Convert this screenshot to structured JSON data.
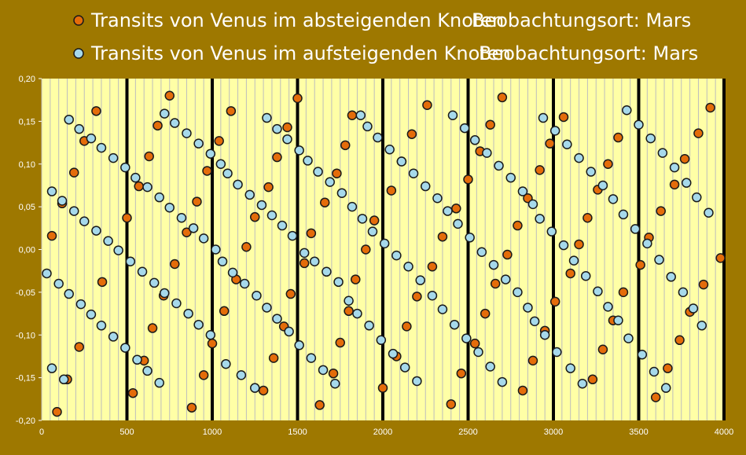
{
  "colors": {
    "background": "#9E7800",
    "plot_area": "#FFFFA6",
    "grid": "#BDBDBD",
    "desc_marker": "#E46C0A",
    "asc_marker": "#A6D9EB",
    "marker_stroke": "#1A1A1A",
    "text": "#FFFFFF"
  },
  "chart_data": {
    "type": "scatter",
    "xlim": [
      0,
      4000
    ],
    "ylim": [
      -0.2,
      0.2
    ],
    "x_ticks": [
      0,
      500,
      1000,
      1500,
      2000,
      2500,
      3000,
      3500,
      4000
    ],
    "y_ticks": [
      -0.2,
      -0.15,
      -0.1,
      -0.05,
      0,
      0.05,
      0.1,
      0.15,
      0.2
    ],
    "x_tick_labels": [
      "0",
      "500",
      "1000",
      "1500",
      "2000",
      "2500",
      "3000",
      "3500",
      "4000"
    ],
    "y_tick_labels": [
      "-0,20",
      "-0,15",
      "-0,10",
      "-0,05",
      "0,00",
      "0,05",
      "0,10",
      "0,15",
      "0,20"
    ],
    "vertical_grid_step": 50,
    "bold_vertical_lines": [
      500,
      1000,
      1500,
      2000,
      2500,
      3000,
      3500,
      4000
    ],
    "legend_position": "top",
    "series": [
      {
        "name": "Transits von Venus im absteigenden Knoten",
        "location": "Beobachtungsort: Mars",
        "marker": "orange-circle",
        "points": [
          [
            60,
            0.016
          ],
          [
            90,
            -0.19
          ],
          [
            120,
            0.054
          ],
          [
            150,
            -0.152
          ],
          [
            190,
            0.09
          ],
          [
            220,
            -0.114
          ],
          [
            250,
            0.127
          ],
          [
            320,
            0.162
          ],
          [
            355,
            -0.038
          ],
          [
            500,
            0.037
          ],
          [
            535,
            -0.168
          ],
          [
            570,
            0.074
          ],
          [
            600,
            -0.13
          ],
          [
            630,
            0.109
          ],
          [
            650,
            -0.092
          ],
          [
            680,
            0.145
          ],
          [
            715,
            -0.054
          ],
          [
            750,
            0.18
          ],
          [
            780,
            -0.017
          ],
          [
            850,
            0.02
          ],
          [
            880,
            -0.185
          ],
          [
            910,
            0.056
          ],
          [
            950,
            -0.147
          ],
          [
            970,
            0.092
          ],
          [
            1000,
            -0.11
          ],
          [
            1040,
            0.127
          ],
          [
            1070,
            -0.072
          ],
          [
            1110,
            0.162
          ],
          [
            1140,
            -0.035
          ],
          [
            1200,
            0.003
          ],
          [
            1250,
            0.038
          ],
          [
            1300,
            -0.165
          ],
          [
            1330,
            0.073
          ],
          [
            1360,
            -0.127
          ],
          [
            1380,
            0.108
          ],
          [
            1420,
            -0.09
          ],
          [
            1440,
            0.143
          ],
          [
            1460,
            -0.052
          ],
          [
            1500,
            0.177
          ],
          [
            1540,
            -0.016
          ],
          [
            1580,
            0.019
          ],
          [
            1630,
            -0.182
          ],
          [
            1660,
            0.055
          ],
          [
            1710,
            -0.145
          ],
          [
            1730,
            0.089
          ],
          [
            1750,
            -0.109
          ],
          [
            1780,
            0.122
          ],
          [
            1800,
            -0.072
          ],
          [
            1820,
            0.157
          ],
          [
            1840,
            -0.035
          ],
          [
            1900,
            0.0
          ],
          [
            1950,
            0.034
          ],
          [
            2000,
            -0.162
          ],
          [
            2050,
            0.069
          ],
          [
            2080,
            -0.125
          ],
          [
            2110,
            0.103
          ],
          [
            2140,
            -0.09
          ],
          [
            2170,
            0.135
          ],
          [
            2200,
            -0.055
          ],
          [
            2260,
            0.169
          ],
          [
            2290,
            -0.02
          ],
          [
            2350,
            0.015
          ],
          [
            2400,
            -0.181
          ],
          [
            2430,
            0.048
          ],
          [
            2460,
            -0.145
          ],
          [
            2500,
            0.082
          ],
          [
            2540,
            -0.11
          ],
          [
            2570,
            0.115
          ],
          [
            2600,
            -0.075
          ],
          [
            2630,
            0.146
          ],
          [
            2660,
            -0.04
          ],
          [
            2700,
            0.178
          ],
          [
            2730,
            -0.006
          ],
          [
            2790,
            0.028
          ],
          [
            2820,
            -0.165
          ],
          [
            2850,
            0.06
          ],
          [
            2880,
            -0.13
          ],
          [
            2920,
            0.093
          ],
          [
            2950,
            -0.095
          ],
          [
            2980,
            0.124
          ],
          [
            3010,
            -0.061
          ],
          [
            3060,
            0.155
          ],
          [
            3100,
            -0.028
          ],
          [
            3150,
            0.006
          ],
          [
            3200,
            0.037
          ],
          [
            3230,
            -0.152
          ],
          [
            3260,
            0.07
          ],
          [
            3290,
            -0.117
          ],
          [
            3320,
            0.1
          ],
          [
            3350,
            -0.083
          ],
          [
            3380,
            0.131
          ],
          [
            3410,
            -0.05
          ],
          [
            3510,
            -0.018
          ],
          [
            3560,
            0.014
          ],
          [
            3600,
            -0.173
          ],
          [
            3630,
            0.045
          ],
          [
            3670,
            -0.139
          ],
          [
            3710,
            0.076
          ],
          [
            3740,
            -0.106
          ],
          [
            3770,
            0.106
          ],
          [
            3800,
            -0.073
          ],
          [
            3850,
            0.136
          ],
          [
            3880,
            -0.041
          ],
          [
            3920,
            0.166
          ],
          [
            3980,
            -0.01
          ]
        ]
      },
      {
        "name": "Transits von Venus im aufsteigenden Knoten",
        "location": "Beobachtungsort: Mars",
        "marker": "lightblue-circle",
        "points": [
          [
            30,
            -0.028
          ],
          [
            60,
            0.068
          ],
          [
            60,
            -0.139
          ],
          [
            100,
            -0.04
          ],
          [
            120,
            0.057
          ],
          [
            130,
            -0.152
          ],
          [
            160,
            0.152
          ],
          [
            160,
            -0.052
          ],
          [
            190,
            0.045
          ],
          [
            220,
            0.141
          ],
          [
            230,
            -0.064
          ],
          [
            250,
            0.033
          ],
          [
            290,
            0.13
          ],
          [
            290,
            -0.076
          ],
          [
            320,
            0.022
          ],
          [
            350,
            0.119
          ],
          [
            350,
            -0.089
          ],
          [
            390,
            0.01
          ],
          [
            420,
            0.107
          ],
          [
            420,
            -0.102
          ],
          [
            450,
            -0.001
          ],
          [
            490,
            0.096
          ],
          [
            490,
            -0.115
          ],
          [
            520,
            -0.014
          ],
          [
            550,
            0.084
          ],
          [
            560,
            -0.129
          ],
          [
            590,
            -0.026
          ],
          [
            620,
            0.073
          ],
          [
            620,
            -0.142
          ],
          [
            660,
            -0.039
          ],
          [
            690,
            0.061
          ],
          [
            690,
            -0.156
          ],
          [
            720,
            0.159
          ],
          [
            720,
            -0.051
          ],
          [
            750,
            0.049
          ],
          [
            780,
            0.148
          ],
          [
            790,
            -0.063
          ],
          [
            820,
            0.037
          ],
          [
            850,
            0.136
          ],
          [
            860,
            -0.075
          ],
          [
            890,
            0.025
          ],
          [
            920,
            0.124
          ],
          [
            920,
            -0.088
          ],
          [
            950,
            0.013
          ],
          [
            990,
            0.112
          ],
          [
            990,
            -0.1
          ],
          [
            1020,
            0.0
          ],
          [
            1050,
            0.1
          ],
          [
            1060,
            -0.014
          ],
          [
            1080,
            -0.134
          ],
          [
            1090,
            0.089
          ],
          [
            1120,
            -0.027
          ],
          [
            1150,
            0.076
          ],
          [
            1170,
            -0.147
          ],
          [
            1190,
            -0.04
          ],
          [
            1220,
            0.064
          ],
          [
            1250,
            -0.162
          ],
          [
            1260,
            -0.054
          ],
          [
            1290,
            0.052
          ],
          [
            1320,
            0.154
          ],
          [
            1320,
            -0.068
          ],
          [
            1350,
            0.04
          ],
          [
            1380,
            0.141
          ],
          [
            1380,
            -0.081
          ],
          [
            1410,
            0.028
          ],
          [
            1440,
            0.129
          ],
          [
            1450,
            -0.096
          ],
          [
            1470,
            0.016
          ],
          [
            1510,
            0.116
          ],
          [
            1510,
            -0.112
          ],
          [
            1540,
            -0.004
          ],
          [
            1560,
            0.104
          ],
          [
            1580,
            -0.127
          ],
          [
            1600,
            -0.014
          ],
          [
            1620,
            0.091
          ],
          [
            1650,
            -0.141
          ],
          [
            1670,
            -0.026
          ],
          [
            1690,
            0.079
          ],
          [
            1720,
            -0.157
          ],
          [
            1740,
            -0.038
          ],
          [
            1760,
            0.066
          ],
          [
            1800,
            -0.06
          ],
          [
            1820,
            0.05
          ],
          [
            1850,
            -0.075
          ],
          [
            1870,
            0.157
          ],
          [
            1880,
            0.036
          ],
          [
            1910,
            0.144
          ],
          [
            1920,
            -0.089
          ],
          [
            1940,
            0.021
          ],
          [
            1970,
            0.131
          ],
          [
            1990,
            -0.106
          ],
          [
            2010,
            0.007
          ],
          [
            2040,
            0.117
          ],
          [
            2060,
            -0.122
          ],
          [
            2080,
            -0.007
          ],
          [
            2110,
            0.103
          ],
          [
            2130,
            -0.138
          ],
          [
            2150,
            -0.02
          ],
          [
            2180,
            0.089
          ],
          [
            2200,
            -0.154
          ],
          [
            2220,
            -0.036
          ],
          [
            2250,
            0.074
          ],
          [
            2290,
            -0.054
          ],
          [
            2320,
            0.06
          ],
          [
            2350,
            -0.07
          ],
          [
            2380,
            0.045
          ],
          [
            2410,
            0.157
          ],
          [
            2420,
            -0.088
          ],
          [
            2440,
            0.03
          ],
          [
            2480,
            0.142
          ],
          [
            2490,
            -0.104
          ],
          [
            2510,
            0.014
          ],
          [
            2540,
            0.128
          ],
          [
            2560,
            -0.12
          ],
          [
            2580,
            -0.003
          ],
          [
            2610,
            0.113
          ],
          [
            2630,
            -0.137
          ],
          [
            2650,
            -0.018
          ],
          [
            2680,
            0.098
          ],
          [
            2700,
            -0.155
          ],
          [
            2720,
            -0.035
          ],
          [
            2750,
            0.084
          ],
          [
            2790,
            -0.05
          ],
          [
            2820,
            0.068
          ],
          [
            2850,
            -0.068
          ],
          [
            2880,
            0.053
          ],
          [
            2890,
            -0.084
          ],
          [
            2920,
            0.036
          ],
          [
            2940,
            0.154
          ],
          [
            2950,
            -0.1
          ],
          [
            2990,
            0.021
          ],
          [
            3010,
            0.139
          ],
          [
            3020,
            -0.12
          ],
          [
            3060,
            0.005
          ],
          [
            3080,
            0.123
          ],
          [
            3100,
            -0.139
          ],
          [
            3120,
            -0.013
          ],
          [
            3150,
            0.107
          ],
          [
            3170,
            -0.157
          ],
          [
            3190,
            -0.031
          ],
          [
            3220,
            0.091
          ],
          [
            3260,
            -0.049
          ],
          [
            3290,
            0.075
          ],
          [
            3320,
            -0.067
          ],
          [
            3350,
            0.059
          ],
          [
            3380,
            -0.083
          ],
          [
            3410,
            0.041
          ],
          [
            3430,
            0.163
          ],
          [
            3440,
            -0.104
          ],
          [
            3480,
            0.024
          ],
          [
            3500,
            0.146
          ],
          [
            3520,
            -0.123
          ],
          [
            3550,
            0.007
          ],
          [
            3570,
            0.13
          ],
          [
            3590,
            -0.143
          ],
          [
            3620,
            -0.012
          ],
          [
            3640,
            0.113
          ],
          [
            3660,
            -0.162
          ],
          [
            3690,
            -0.032
          ],
          [
            3710,
            0.096
          ],
          [
            3760,
            -0.05
          ],
          [
            3780,
            0.078
          ],
          [
            3820,
            -0.069
          ],
          [
            3840,
            0.061
          ],
          [
            3870,
            -0.089
          ],
          [
            3910,
            0.043
          ]
        ]
      }
    ]
  }
}
